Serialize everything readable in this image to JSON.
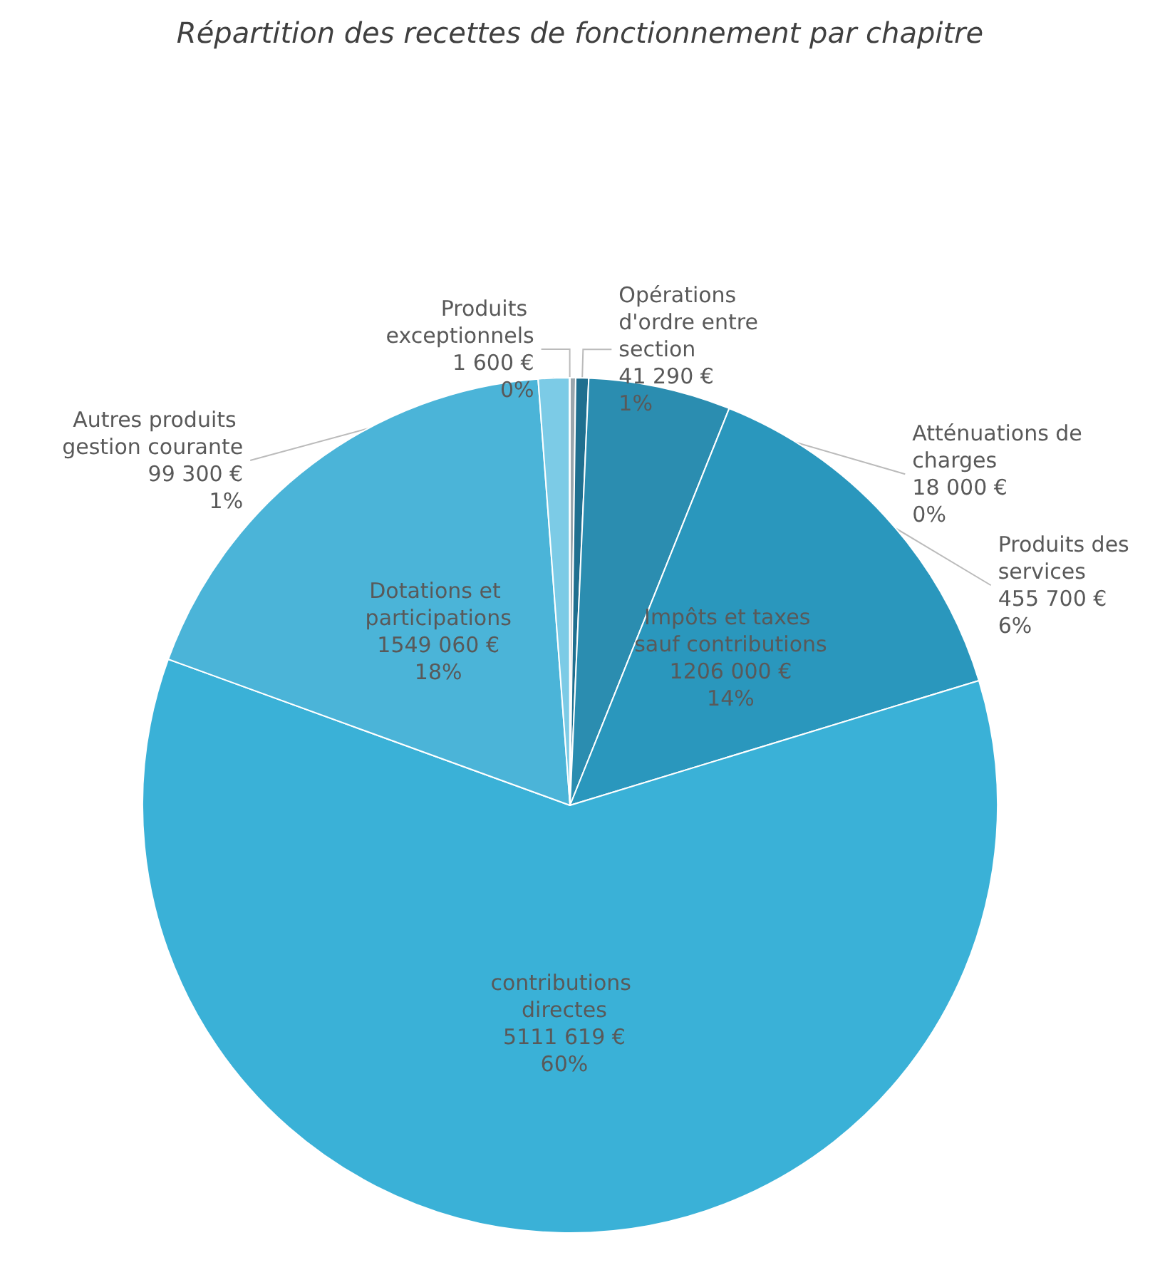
{
  "chart_data": {
    "type": "pie",
    "title": "Répartition des recettes de fonctionnement par chapitre",
    "categories": [
      "Atténuations de charges",
      "Opérations d'ordre entre section",
      "Produits des services",
      "Impôts et taxes sauf contributions",
      "contributions directes",
      "Dotations et participations",
      "Autres produits gestion courante",
      "Produits exceptionnels"
    ],
    "values": [
      18000,
      41290,
      455700,
      1206000,
      5111619,
      1549060,
      99300,
      1600
    ],
    "value_labels": [
      "18 000 €\n0%",
      "41 290 €\n1%",
      "455 700 €\n6%",
      "1206 000 €\n14%",
      "5111 619 €\n60%",
      "1549 060 €\n18%",
      "99 300 €\n1%",
      "1 600 €\n0%"
    ],
    "colors": [
      "#9aa6ad",
      "#1f6f8f",
      "#2b8db0",
      "#2a97bd",
      "#3ab1d7",
      "#4bb4d8",
      "#7ccbe6",
      "#a0d8ec"
    ],
    "legend": false
  }
}
